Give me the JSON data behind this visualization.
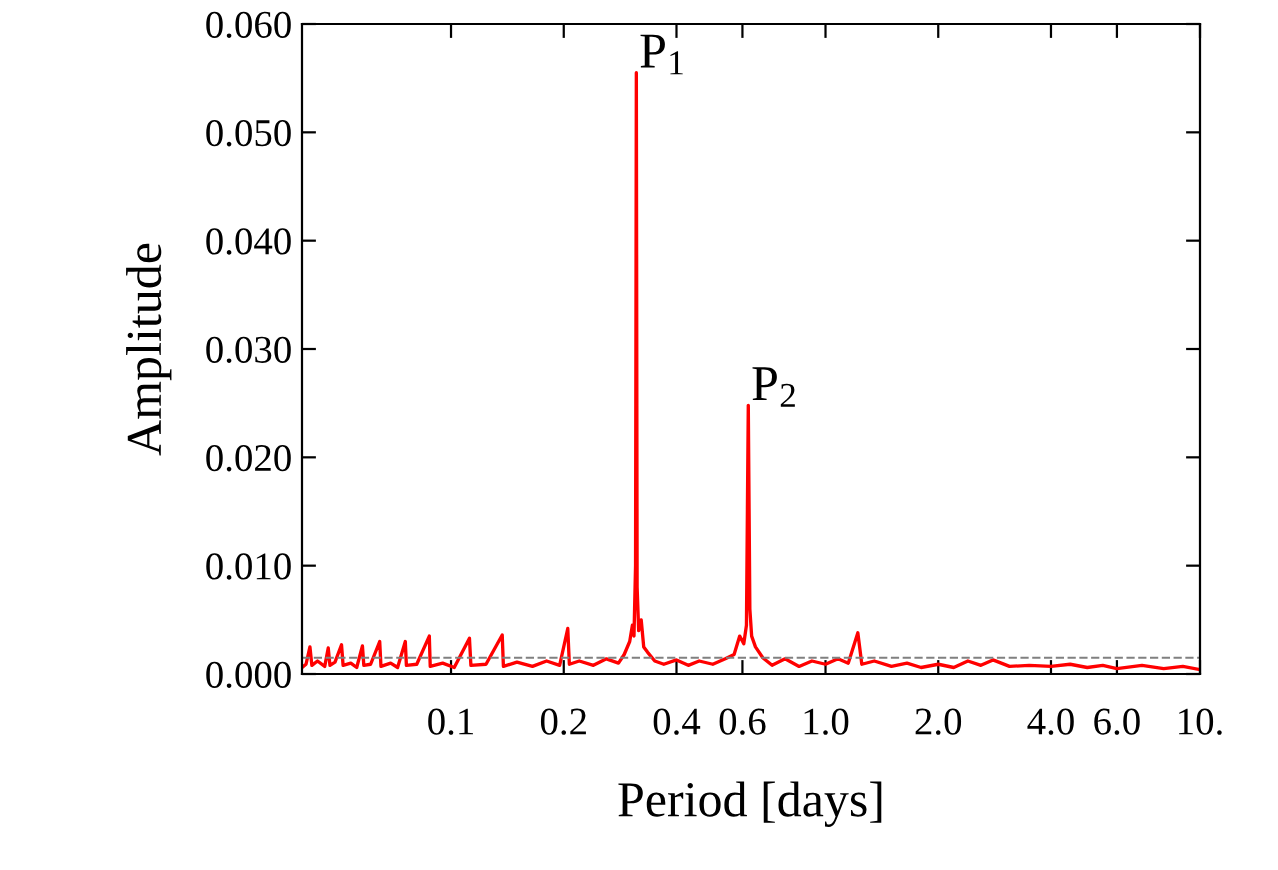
{
  "chart_data": {
    "type": "line",
    "xlabel": "Period [days]",
    "ylabel": "Amplitude",
    "log": "x",
    "xlim": [
      0.04,
      10
    ],
    "xticks": [
      0.1,
      0.2,
      0.4,
      0.6,
      {
        "value": 1,
        "label": "1.0"
      },
      {
        "value": 2,
        "label": "2.0"
      },
      {
        "value": 4,
        "label": "4.0"
      },
      {
        "value": 6,
        "label": "6.0"
      },
      {
        "value": 10,
        "label": "10."
      }
    ],
    "ylim": [
      0,
      0.06
    ],
    "yticks": [
      {
        "value": 0,
        "label": "0.000"
      },
      {
        "value": 0.01,
        "label": "0.010"
      },
      {
        "value": 0.02,
        "label": "0.020"
      },
      {
        "value": 0.03,
        "label": "0.030"
      },
      {
        "value": 0.04,
        "label": "0.040"
      },
      {
        "value": 0.05,
        "label": "0.050"
      },
      {
        "value": 0.06,
        "label": "0.060"
      }
    ],
    "grid": false,
    "legend": false,
    "marker": "none",
    "line_style": "solid",
    "ref_lines": [
      {
        "axis": "y",
        "value": 0.0015,
        "color": "#808080",
        "line_style": "dashed"
      }
    ],
    "annotations": [
      {
        "text": "P$_{1}$",
        "x": 0.3125,
        "y": 0.0555
      },
      {
        "text": "P$_{2}$",
        "x": 0.622,
        "y": 0.0248
      }
    ],
    "series": [
      {
        "color": "#ff0000",
        "x": [
          0.04,
          0.041,
          0.042,
          0.0425,
          0.044,
          0.046,
          0.047,
          0.0475,
          0.049,
          0.051,
          0.0515,
          0.054,
          0.056,
          0.058,
          0.0585,
          0.061,
          0.0645,
          0.065,
          0.069,
          0.072,
          0.0755,
          0.076,
          0.081,
          0.0875,
          0.088,
          0.095,
          0.102,
          0.112,
          0.113,
          0.124,
          0.137,
          0.138,
          0.15,
          0.165,
          0.18,
          0.195,
          0.205,
          0.207,
          0.22,
          0.24,
          0.26,
          0.28,
          0.29,
          0.3,
          0.305,
          0.308,
          0.311,
          0.3125,
          0.314,
          0.317,
          0.322,
          0.327,
          0.335,
          0.35,
          0.37,
          0.4,
          0.43,
          0.46,
          0.5,
          0.54,
          0.57,
          0.59,
          0.605,
          0.615,
          0.622,
          0.628,
          0.635,
          0.65,
          0.68,
          0.72,
          0.78,
          0.85,
          0.92,
          1.0,
          1.08,
          1.15,
          1.22,
          1.25,
          1.35,
          1.5,
          1.65,
          1.8,
          2.0,
          2.2,
          2.4,
          2.6,
          2.8,
          3.1,
          3.5,
          4.0,
          4.5,
          5.0,
          5.5,
          6.0,
          7.0,
          8.0,
          9.0,
          10.0
        ],
        "values": [
          0.0006,
          0.0009,
          0.0025,
          0.0008,
          0.0012,
          0.0007,
          0.0024,
          0.0008,
          0.0011,
          0.0027,
          0.0008,
          0.001,
          0.0006,
          0.0026,
          0.0008,
          0.0009,
          0.003,
          0.0007,
          0.001,
          0.0006,
          0.003,
          0.0008,
          0.0009,
          0.0035,
          0.0007,
          0.001,
          0.0006,
          0.0033,
          0.0008,
          0.0009,
          0.0036,
          0.0007,
          0.0011,
          0.0007,
          0.0012,
          0.0008,
          0.0042,
          0.0009,
          0.0012,
          0.0008,
          0.0014,
          0.001,
          0.0018,
          0.003,
          0.0045,
          0.0035,
          0.01,
          0.0555,
          0.008,
          0.004,
          0.005,
          0.0025,
          0.002,
          0.0012,
          0.0009,
          0.0013,
          0.0008,
          0.0012,
          0.0009,
          0.0014,
          0.0018,
          0.0035,
          0.0028,
          0.0045,
          0.0248,
          0.006,
          0.0035,
          0.0025,
          0.0015,
          0.0008,
          0.0014,
          0.0007,
          0.0012,
          0.0009,
          0.0014,
          0.001,
          0.0038,
          0.0009,
          0.0012,
          0.0007,
          0.001,
          0.0006,
          0.0009,
          0.0006,
          0.0012,
          0.0008,
          0.0013,
          0.0007,
          0.0008,
          0.0007,
          0.0009,
          0.0006,
          0.0008,
          0.0005,
          0.0008,
          0.0005,
          0.0007,
          0.0004
        ]
      }
    ]
  }
}
